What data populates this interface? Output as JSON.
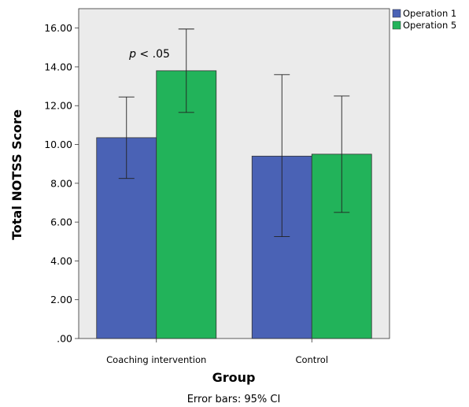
{
  "chart_data": {
    "type": "bar",
    "categories": [
      "Coaching intervention",
      "Control"
    ],
    "series": [
      {
        "name": "Operation 1",
        "color": "#4a62b5",
        "values": [
          10.35,
          9.4
        ],
        "ci_lower": [
          8.25,
          5.25
        ],
        "ci_upper": [
          12.45,
          13.6
        ]
      },
      {
        "name": "Operation 5",
        "color": "#22b35a",
        "values": [
          13.8,
          9.5
        ],
        "ci_lower": [
          11.65,
          6.5
        ],
        "ci_upper": [
          15.95,
          12.5
        ]
      }
    ],
    "xlabel": "Group",
    "ylabel": "Total NOTSS Score",
    "ylim": [
      0,
      17
    ],
    "yticks": [
      0,
      2,
      4,
      6,
      8,
      10,
      12,
      14,
      16
    ],
    "ytick_labels": [
      ".00",
      "2.00",
      "4.00",
      "6.00",
      "8.00",
      "10.00",
      "12.00",
      "14.00",
      "16.00"
    ],
    "footnote": "Error bars: 95% CI",
    "annotation": {
      "italic_part": "p",
      "rest": " < .05"
    },
    "legend_labels": [
      "Operation 1",
      "Operation 5"
    ],
    "grid": false,
    "legend_position": "top-right",
    "plot_background": "#ebebeb"
  }
}
